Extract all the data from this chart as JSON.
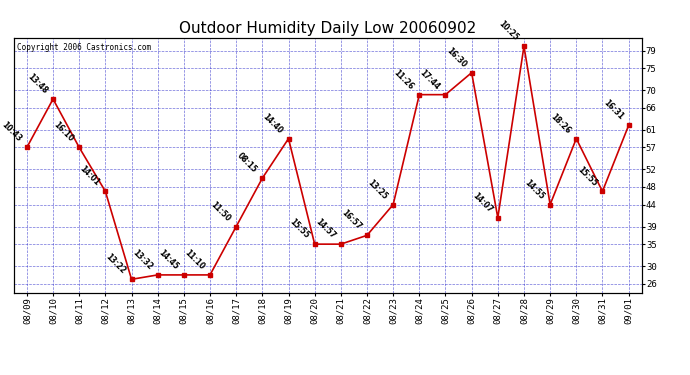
{
  "title": "Outdoor Humidity Daily Low 20060902",
  "copyright": "Copyright 2006 Castronics.com",
  "dates": [
    "08/09",
    "08/10",
    "08/11",
    "08/12",
    "08/13",
    "08/14",
    "08/15",
    "08/16",
    "08/17",
    "08/18",
    "08/19",
    "08/20",
    "08/21",
    "08/22",
    "08/23",
    "08/24",
    "08/25",
    "08/26",
    "08/27",
    "08/28",
    "08/29",
    "08/30",
    "08/31",
    "09/01"
  ],
  "values": [
    57,
    68,
    57,
    47,
    27,
    28,
    28,
    28,
    39,
    50,
    59,
    35,
    35,
    37,
    44,
    69,
    69,
    74,
    41,
    80,
    44,
    59,
    47,
    62
  ],
  "labels": [
    "10:43",
    "13:48",
    "16:10",
    "14:01",
    "13:22",
    "13:32",
    "14:45",
    "11:10",
    "11:50",
    "08:15",
    "14:40",
    "15:55",
    "14:57",
    "16:57",
    "13:25",
    "11:26",
    "17:44",
    "16:30",
    "14:07",
    "10:25",
    "14:55",
    "18:26",
    "15:55",
    "16:31"
  ],
  "line_color": "#cc0000",
  "marker_color": "#cc0000",
  "bg_color": "#ffffff",
  "plot_bg": "#ffffff",
  "grid_color": "#3333cc",
  "title_fontsize": 11,
  "ylim": [
    24,
    82
  ],
  "yticks": [
    26,
    30,
    35,
    39,
    44,
    48,
    52,
    57,
    61,
    66,
    70,
    75,
    79
  ]
}
